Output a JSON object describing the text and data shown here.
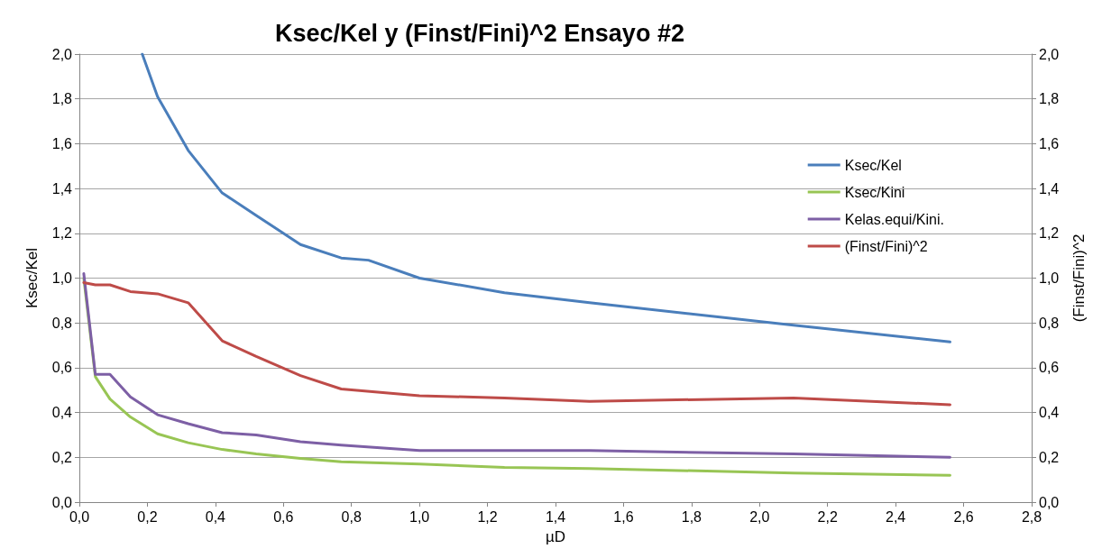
{
  "chart_data": {
    "type": "line",
    "title": "Ksec/Kel y (Finst/Fini)^2 Ensayo #2",
    "xlabel": "µD",
    "ylabel": "Ksec/Kel",
    "y2label": "(Finst/Fini)^2",
    "xlim": [
      0,
      2.8
    ],
    "xticks": [
      {
        "value": 0,
        "label": "0,0"
      },
      {
        "value": 0.2,
        "label": "0,2"
      },
      {
        "value": 0.4,
        "label": "0,4"
      },
      {
        "value": 0.6,
        "label": "0,6"
      },
      {
        "value": 0.8,
        "label": "0,8"
      },
      {
        "value": 1.0,
        "label": "1,0"
      },
      {
        "value": 1.2,
        "label": "1,2"
      },
      {
        "value": 1.4,
        "label": "1,4"
      },
      {
        "value": 1.6,
        "label": "1,6"
      },
      {
        "value": 1.8,
        "label": "1,8"
      },
      {
        "value": 2.0,
        "label": "2,0"
      },
      {
        "value": 2.2,
        "label": "2,2"
      },
      {
        "value": 2.4,
        "label": "2,4"
      },
      {
        "value": 2.6,
        "label": "2,6"
      },
      {
        "value": 2.8,
        "label": "2,8"
      }
    ],
    "ylim": [
      0,
      2
    ],
    "yticks": [
      {
        "value": 0,
        "label": "0,0"
      },
      {
        "value": 0.2,
        "label": "0,2"
      },
      {
        "value": 0.4,
        "label": "0,4"
      },
      {
        "value": 0.6,
        "label": "0,6"
      },
      {
        "value": 0.8,
        "label": "0,8"
      },
      {
        "value": 1.0,
        "label": "1,0"
      },
      {
        "value": 1.2,
        "label": "1,2"
      },
      {
        "value": 1.4,
        "label": "1,4"
      },
      {
        "value": 1.6,
        "label": "1,6"
      },
      {
        "value": 1.8,
        "label": "1,8"
      },
      {
        "value": 2.0,
        "label": "2,0"
      }
    ],
    "y2lim": [
      0,
      2
    ],
    "y2ticks": [
      {
        "value": 0,
        "label": "0,0"
      },
      {
        "value": 0.2,
        "label": "0,2"
      },
      {
        "value": 0.4,
        "label": "0,4"
      },
      {
        "value": 0.6,
        "label": "0,6"
      },
      {
        "value": 0.8,
        "label": "0,8"
      },
      {
        "value": 1.0,
        "label": "1,0"
      },
      {
        "value": 1.2,
        "label": "1,2"
      },
      {
        "value": 1.4,
        "label": "1,4"
      },
      {
        "value": 1.6,
        "label": "1,6"
      },
      {
        "value": 1.8,
        "label": "1,8"
      },
      {
        "value": 2.0,
        "label": "2,0"
      }
    ],
    "grid": "y",
    "legend": "right",
    "marker": "none",
    "line_style": "solid",
    "series": [
      {
        "name": "Ksec/Kel",
        "color": "#4a7ebb",
        "x": [
          0.185,
          0.23,
          0.32,
          0.42,
          0.52,
          0.65,
          0.77,
          0.85,
          1.0,
          1.25,
          1.5,
          2.1,
          2.56
        ],
        "values": [
          2.0,
          1.81,
          1.57,
          1.38,
          1.28,
          1.15,
          1.09,
          1.08,
          1.0,
          0.935,
          0.89,
          0.79,
          0.715
        ]
      },
      {
        "name": "Ksec/Kini",
        "color": "#98c554",
        "x": [
          0.013,
          0.047,
          0.09,
          0.15,
          0.23,
          0.32,
          0.42,
          0.52,
          0.65,
          0.77,
          1.0,
          1.25,
          1.5,
          2.1,
          2.56
        ],
        "values": [
          1.0,
          0.56,
          0.46,
          0.38,
          0.305,
          0.265,
          0.235,
          0.215,
          0.195,
          0.18,
          0.17,
          0.155,
          0.15,
          0.13,
          0.12
        ]
      },
      {
        "name": "Kelas.equi/Kini.",
        "color": "#7d5fa5",
        "x": [
          0.013,
          0.047,
          0.09,
          0.15,
          0.23,
          0.32,
          0.42,
          0.52,
          0.65,
          0.77,
          1.0,
          1.25,
          1.5,
          2.1,
          2.56
        ],
        "values": [
          1.02,
          0.57,
          0.57,
          0.47,
          0.39,
          0.35,
          0.31,
          0.3,
          0.27,
          0.255,
          0.23,
          0.23,
          0.23,
          0.215,
          0.2
        ]
      },
      {
        "name": "(Finst/Fini)^2",
        "color": "#be4b48",
        "x": [
          0.013,
          0.047,
          0.09,
          0.15,
          0.23,
          0.32,
          0.42,
          0.52,
          0.65,
          0.77,
          1.0,
          1.25,
          1.5,
          2.1,
          2.56
        ],
        "values": [
          0.98,
          0.97,
          0.97,
          0.94,
          0.93,
          0.89,
          0.72,
          0.65,
          0.565,
          0.505,
          0.475,
          0.465,
          0.45,
          0.465,
          0.435
        ]
      }
    ]
  }
}
